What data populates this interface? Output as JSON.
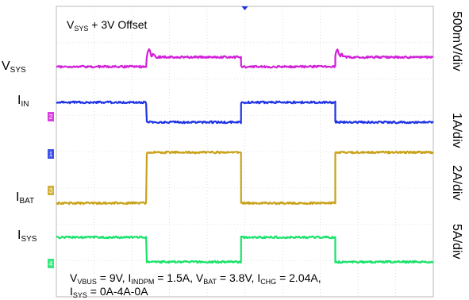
{
  "chart_data": {
    "type": "line",
    "x": [
      0,
      1,
      2,
      3,
      4,
      5,
      6,
      7,
      8,
      9,
      10
    ],
    "series": [
      {
        "name": "VSYS",
        "color": "#d21fd9",
        "scale": "500mV/div"
      },
      {
        "name": "IIN",
        "color": "#1f33e6",
        "scale": "1A/div"
      },
      {
        "name": "IBAT",
        "color": "#c9a21a",
        "scale": "2A/div"
      },
      {
        "name": "ISYS",
        "color": "#19e36b",
        "scale": "5A/div"
      }
    ],
    "reference_markers": [
      "2",
      "1",
      "3",
      "4"
    ],
    "grid": true,
    "ylabel_offset_note": "VSYS + 3V Offset"
  },
  "labels": {
    "vsys": {
      "main": "V",
      "sub": "SYS"
    },
    "iin": {
      "main": "I",
      "sub": "IN"
    },
    "ibat": {
      "main": "I",
      "sub": "BAT"
    },
    "isys": {
      "main": "I",
      "sub": "SYS"
    }
  },
  "offset_text": {
    "prefix": "V",
    "sub": "SYS",
    "suffix": " + 3V Offset"
  },
  "scales": [
    "500mV/div",
    "1A/div",
    "2A/div",
    "5A/div"
  ],
  "caption": {
    "line1": [
      {
        "t": "V"
      },
      {
        "s": "VBUS"
      },
      {
        "t": " = 9V, I"
      },
      {
        "s": "INDPM"
      },
      {
        "t": " = 1.5A, V"
      },
      {
        "s": "BAT"
      },
      {
        "t": " = 3.8V, I"
      },
      {
        "s": "CHG"
      },
      {
        "t": " = 2.04A,"
      }
    ],
    "line2": [
      {
        "t": "I"
      },
      {
        "s": "SYS"
      },
      {
        "t": " = 0A-4A-0A"
      }
    ]
  }
}
